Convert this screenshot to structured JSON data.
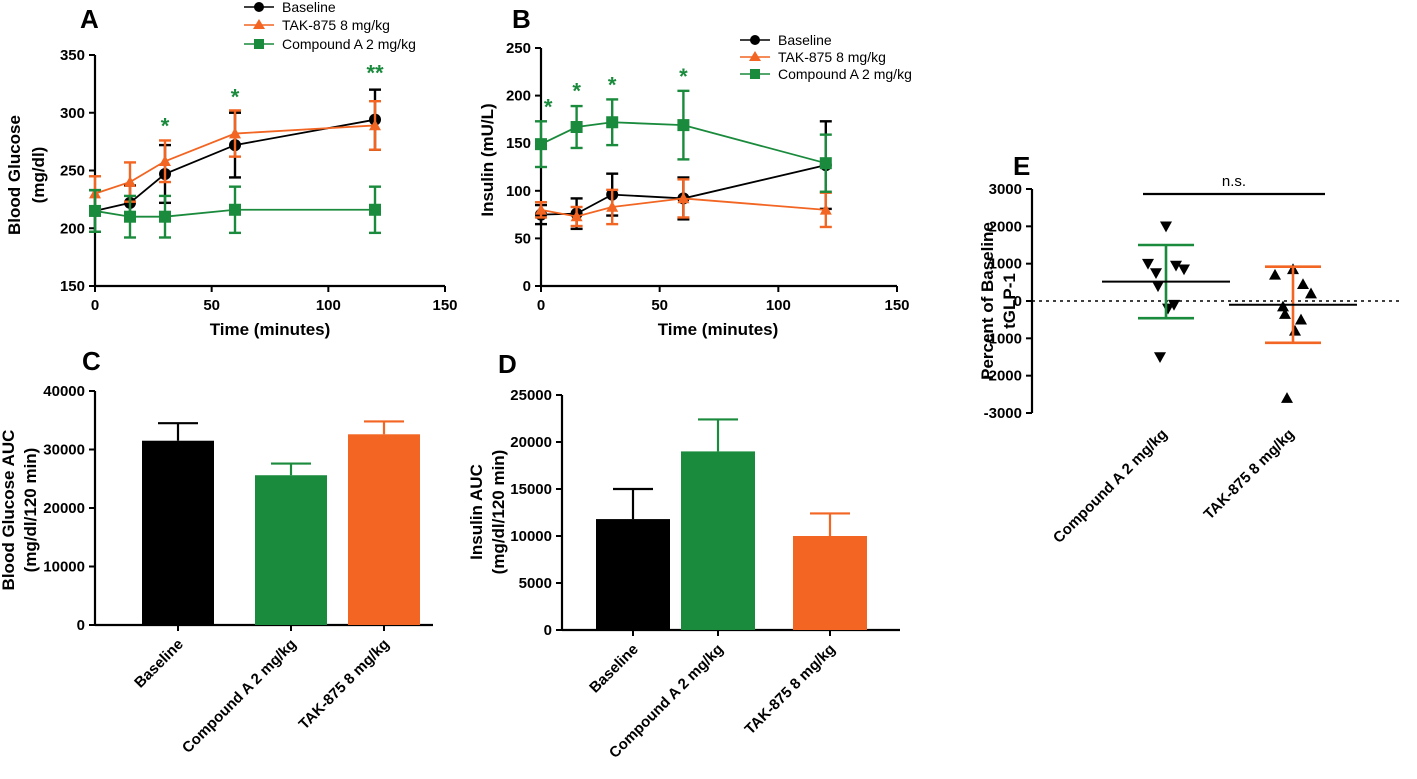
{
  "figure": {
    "colors": {
      "baseline": "#000000",
      "tak875": "#f26522",
      "compoundA": "#1a8a3c",
      "star": "#1a8a3c"
    }
  },
  "chart_data": [
    {
      "id": "A",
      "panel_label": "A",
      "type": "line",
      "xlabel": "Time (minutes)",
      "ylabel_lines": [
        "Blood Glucose",
        "(mg/dl)"
      ],
      "xlim": [
        0,
        150
      ],
      "ylim": [
        150,
        350
      ],
      "xticks": [
        0,
        50,
        100,
        150
      ],
      "yticks": [
        150,
        200,
        250,
        300,
        350
      ],
      "legend_position": "top-center",
      "series": [
        {
          "name": "Baseline",
          "key": "baseline",
          "marker": "circle",
          "x": [
            0,
            15,
            30,
            60,
            120
          ],
          "y": [
            215,
            222,
            247,
            272,
            294
          ],
          "err": [
            18,
            15,
            25,
            28,
            26
          ]
        },
        {
          "name": "TAK-875 8 mg/kg",
          "key": "tak875",
          "marker": "triangle-up",
          "x": [
            0,
            15,
            30,
            60,
            120
          ],
          "y": [
            230,
            240,
            258,
            282,
            289
          ],
          "err": [
            15,
            17,
            18,
            20,
            21
          ]
        },
        {
          "name": "Compound A 2 mg/kg",
          "key": "compoundA",
          "marker": "square",
          "x": [
            0,
            15,
            30,
            60,
            120
          ],
          "y": [
            215,
            210,
            210,
            216,
            216
          ],
          "err": [
            18,
            18,
            18,
            20,
            20
          ]
        }
      ],
      "annotations": [
        {
          "x": 30,
          "y": 282,
          "text": "*"
        },
        {
          "x": 60,
          "y": 307,
          "text": "*"
        },
        {
          "x": 120,
          "y": 328,
          "text": "**"
        }
      ]
    },
    {
      "id": "B",
      "panel_label": "B",
      "type": "line",
      "xlabel": "Time (minutes)",
      "ylabel_lines": [
        "Insulin (mU/L)"
      ],
      "xlim": [
        0,
        150
      ],
      "ylim": [
        0,
        250
      ],
      "xticks": [
        0,
        50,
        100,
        150
      ],
      "yticks": [
        0,
        50,
        100,
        150,
        200,
        250
      ],
      "legend_position": "top-right",
      "series": [
        {
          "name": "Baseline",
          "key": "baseline",
          "marker": "circle",
          "x": [
            0,
            15,
            30,
            60,
            120
          ],
          "y": [
            75,
            76,
            96,
            92,
            127
          ],
          "err": [
            10,
            16,
            22,
            22,
            46
          ]
        },
        {
          "name": "TAK-875 8 mg/kg",
          "key": "tak875",
          "marker": "triangle-up",
          "x": [
            0,
            15,
            30,
            60,
            120
          ],
          "y": [
            80,
            73,
            83,
            92,
            80
          ],
          "err": [
            8,
            10,
            18,
            20,
            18
          ]
        },
        {
          "name": "Compound A 2 mg/kg",
          "key": "compoundA",
          "marker": "square",
          "x": [
            0,
            15,
            30,
            60,
            120
          ],
          "y": [
            149,
            167,
            172,
            169,
            129
          ],
          "err": [
            24,
            22,
            24,
            36,
            30
          ]
        }
      ],
      "annotations": [
        {
          "x": 3,
          "y": 180,
          "text": "*"
        },
        {
          "x": 15,
          "y": 197,
          "text": "*"
        },
        {
          "x": 30,
          "y": 203,
          "text": "*"
        },
        {
          "x": 60,
          "y": 212,
          "text": "*"
        }
      ]
    },
    {
      "id": "C",
      "panel_label": "C",
      "type": "bar",
      "ylabel_lines": [
        "Blood Glucose AUC",
        "(mg/dl/120 min)"
      ],
      "ylim": [
        0,
        40000
      ],
      "yticks": [
        0,
        10000,
        20000,
        30000,
        40000
      ],
      "categories": [
        "Baseline",
        "Compound A 2 mg/kg",
        "TAK-875 8 mg/kg"
      ],
      "category_keys": [
        "baseline",
        "compoundA",
        "tak875"
      ],
      "values": [
        31500,
        25600,
        32600
      ],
      "errors": [
        3000,
        2000,
        2200
      ]
    },
    {
      "id": "D",
      "panel_label": "D",
      "type": "bar",
      "ylabel_lines": [
        "Insulin AUC",
        "(mg/dl/120 min)"
      ],
      "ylim": [
        0,
        25000
      ],
      "yticks": [
        0,
        5000,
        10000,
        15000,
        20000,
        25000
      ],
      "categories": [
        "Baseline",
        "Compound A 2 mg/kg",
        "TAK-875 8 mg/kg"
      ],
      "category_keys": [
        "baseline",
        "compoundA",
        "tak875"
      ],
      "values": [
        11800,
        19000,
        10000
      ],
      "errors": [
        3200,
        3400,
        2400
      ]
    },
    {
      "id": "E",
      "panel_label": "E",
      "type": "scatter",
      "ylabel_lines": [
        "Percent of Baseline",
        "tGLP-1"
      ],
      "ylim": [
        -3000,
        3000
      ],
      "yticks": [
        -3000,
        -2000,
        -1000,
        0,
        1000,
        2000,
        3000
      ],
      "categories": [
        "Compound A 2 mg/kg",
        "TAK-875 8 mg/kg"
      ],
      "groups": [
        {
          "name": "Compound A 2 mg/kg",
          "key": "compoundA",
          "marker": "triangle-down",
          "mean": 520,
          "sd": 980,
          "points": [
            2000,
            1000,
            950,
            850,
            750,
            400,
            -100,
            -200,
            -1500
          ]
        },
        {
          "name": "TAK-875 8 mg/kg",
          "key": "tak875",
          "marker": "triangle-up",
          "mean": -100,
          "sd": 1020,
          "points": [
            850,
            700,
            450,
            200,
            -150,
            -350,
            -500,
            -800,
            -2600
          ]
        }
      ],
      "reference_line": 0,
      "significance_label": "n.s."
    }
  ]
}
